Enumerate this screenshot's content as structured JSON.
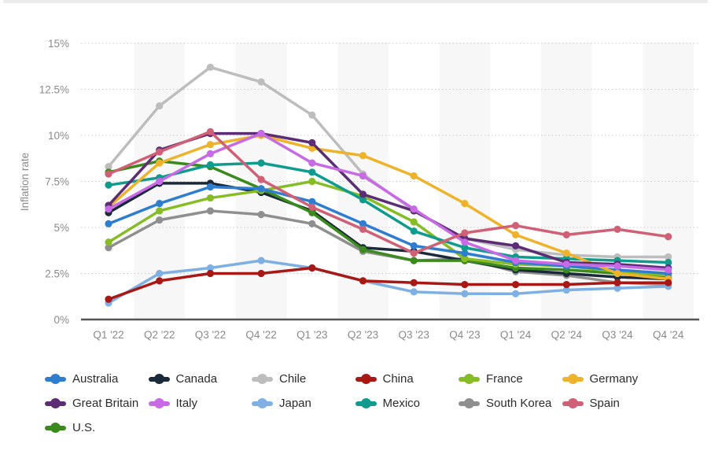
{
  "chart_data": {
    "type": "line",
    "title": "",
    "ylabel": "Inflation rate",
    "xlabel": "",
    "x_categories": [
      "Q1 '22",
      "Q2 '22",
      "Q3 '22",
      "Q4 '22",
      "Q1 '23",
      "Q2 '23",
      "Q3 '23",
      "Q4 '23",
      "Q1 '24",
      "Q2 '24",
      "Q3 '24",
      "Q4 '24"
    ],
    "y_ticks": [
      "0%",
      "2.5%",
      "5%",
      "7.5%",
      "10%",
      "12.5%",
      "15%"
    ],
    "y_tick_values": [
      0,
      2.5,
      5,
      7.5,
      10,
      12.5,
      15
    ],
    "ylim": [
      0,
      15
    ],
    "grid": "horizontal-dotted",
    "legend_position": "bottom",
    "band_color": "#f7f7f7",
    "axis_line_color": "#555555",
    "series": [
      {
        "name": "Australia",
        "color": "#2e7dd1",
        "values": [
          5.2,
          6.3,
          7.2,
          7.1,
          6.4,
          5.2,
          4.0,
          3.6,
          3.1,
          2.9,
          2.7,
          2.5
        ]
      },
      {
        "name": "Canada",
        "color": "#1b2a3b",
        "values": [
          5.8,
          7.4,
          7.4,
          6.9,
          5.9,
          3.9,
          3.7,
          3.2,
          2.7,
          2.5,
          2.3,
          2.2
        ]
      },
      {
        "name": "Chile",
        "color": "#bdbdbd",
        "values": [
          8.3,
          11.6,
          13.7,
          12.9,
          11.1,
          7.9,
          5.9,
          4.4,
          3.8,
          3.5,
          3.4,
          3.4
        ]
      },
      {
        "name": "China",
        "color": "#a81916",
        "values": [
          1.1,
          2.1,
          2.5,
          2.5,
          2.8,
          2.1,
          2.0,
          1.9,
          1.9,
          1.9,
          2.0,
          2.0
        ]
      },
      {
        "name": "France",
        "color": "#86bc25",
        "values": [
          4.2,
          5.9,
          6.6,
          7.0,
          7.5,
          6.7,
          5.3,
          3.3,
          3.0,
          2.9,
          2.6,
          2.4
        ]
      },
      {
        "name": "Germany",
        "color": "#eeb32a",
        "values": [
          6.1,
          8.5,
          9.5,
          10.0,
          9.3,
          8.9,
          7.8,
          6.3,
          4.6,
          3.6,
          2.5,
          2.2
        ]
      },
      {
        "name": "Great Britain",
        "color": "#5c2d74",
        "values": [
          6.2,
          9.2,
          10.1,
          10.1,
          9.6,
          6.8,
          5.9,
          4.4,
          4.0,
          3.1,
          3.0,
          2.8
        ]
      },
      {
        "name": "Italy",
        "color": "#c869e5",
        "values": [
          6.0,
          7.5,
          9.0,
          10.1,
          8.5,
          7.8,
          6.0,
          4.2,
          3.2,
          3.0,
          2.9,
          2.7
        ]
      },
      {
        "name": "Japan",
        "color": "#7fb0e3",
        "values": [
          0.9,
          2.5,
          2.8,
          3.2,
          2.8,
          2.1,
          1.5,
          1.4,
          1.4,
          1.6,
          1.7,
          1.8
        ]
      },
      {
        "name": "Mexico",
        "color": "#0f9b8d",
        "values": [
          7.3,
          7.7,
          8.4,
          8.5,
          8.0,
          6.5,
          4.8,
          3.9,
          3.4,
          3.3,
          3.2,
          3.1
        ]
      },
      {
        "name": "South Korea",
        "color": "#8f8f8f",
        "values": [
          3.9,
          5.4,
          5.9,
          5.7,
          5.2,
          3.7,
          3.2,
          3.3,
          2.6,
          2.4,
          2.0,
          1.9
        ]
      },
      {
        "name": "Spain",
        "color": "#cf6076",
        "values": [
          7.9,
          9.1,
          10.2,
          7.6,
          6.1,
          4.9,
          3.6,
          4.7,
          5.1,
          4.6,
          4.9,
          4.5
        ]
      },
      {
        "name": "U.S.",
        "color": "#3a8a1d",
        "values": [
          8.0,
          8.6,
          8.3,
          7.1,
          5.8,
          3.8,
          3.2,
          3.2,
          2.8,
          2.7,
          2.5,
          2.3
        ]
      }
    ],
    "draw_order": [
      "Chile",
      "South Korea",
      "Canada",
      "U.S.",
      "France",
      "Australia",
      "Mexico",
      "Germany",
      "Great Britain",
      "Italy",
      "Japan",
      "China",
      "Spain"
    ]
  }
}
